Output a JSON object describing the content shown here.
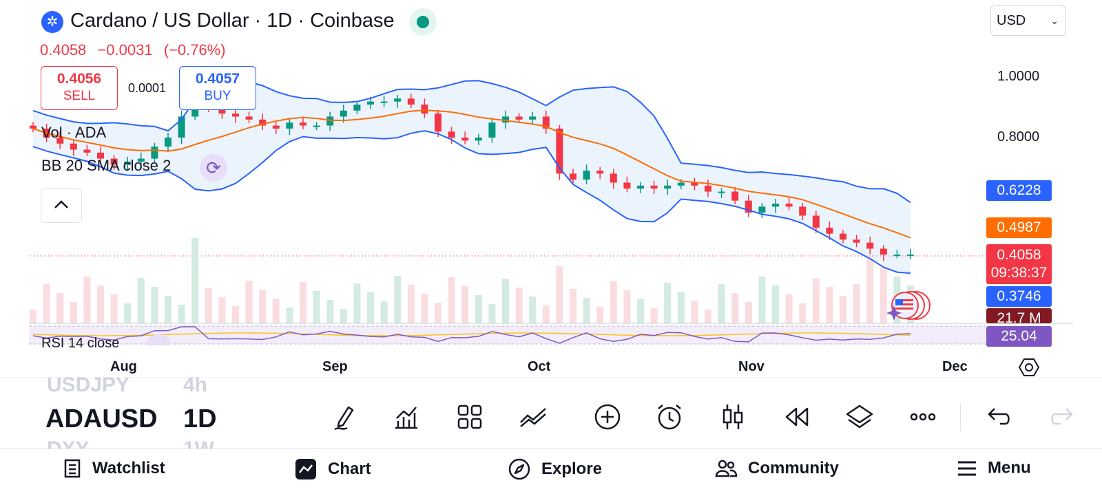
{
  "header": {
    "coin_icon": "cardano-logo-icon",
    "title": "Cardano / US Dollar · 1D · Coinbase",
    "currency": "USD",
    "price": "0.4058",
    "change": "−0.0031",
    "change_pct": "(−0.76%)"
  },
  "order": {
    "sell_price": "0.4056",
    "sell_label": "SELL",
    "spread": "0.0001",
    "buy_price": "0.4057",
    "buy_label": "BUY"
  },
  "legends": {
    "volume": "Vol · ADA",
    "bb": "BB 20 SMA close 2",
    "rsi": "RSI 14 close"
  },
  "price_axis": {
    "labels": [
      "1.0000",
      "0.8000"
    ],
    "bb_upper": "0.6228",
    "bb_basis": "0.4987",
    "last_price": "0.4058",
    "countdown": "09:38:37",
    "bb_lower": "0.3746",
    "volume": "21.7 M",
    "rsi": "25.04"
  },
  "time_axis": [
    "Aug",
    "Sep",
    "Oct",
    "Nov",
    "Dec"
  ],
  "colors": {
    "up": "#089981",
    "down": "#f23645",
    "bb_band": "#2962ff",
    "bb_basis": "#ff6d00",
    "rsi": "#7e57c2"
  },
  "symbol_wheel": {
    "prev_symbol": "USDJPY",
    "prev_interval": "4h",
    "symbol": "ADAUSD",
    "interval": "1D",
    "next_symbol": "DXY",
    "next_interval": "1W"
  },
  "toolbar": [
    "draw-icon",
    "indicators-icon",
    "layouts-icon",
    "trendline-icon",
    "add-icon",
    "alert-icon",
    "candles-icon",
    "replay-icon",
    "layers-icon",
    "more-icon",
    "undo-icon",
    "redo-icon"
  ],
  "nav": {
    "watchlist": "Watchlist",
    "chart": "Chart",
    "explore": "Explore",
    "community": "Community",
    "menu": "Menu"
  },
  "chart_data": {
    "type": "candlestick",
    "title": "Cardano / US Dollar · 1D · Coinbase",
    "x_ticks": [
      "Aug",
      "Sep",
      "Oct",
      "Nov",
      "Dec"
    ],
    "y_ticks": [
      "0.8000",
      "1.0000"
    ],
    "series": [
      {
        "name": "ADAUSD close (approx)",
        "values": [
          0.83,
          0.8,
          0.78,
          0.76,
          0.75,
          0.73,
          0.71,
          0.72,
          0.73,
          0.77,
          0.8,
          0.87,
          0.93,
          0.9,
          0.88,
          0.87,
          0.86,
          0.84,
          0.83,
          0.85,
          0.84,
          0.84,
          0.87,
          0.89,
          0.91,
          0.92,
          0.92,
          0.93,
          0.91,
          0.88,
          0.82,
          0.8,
          0.79,
          0.8,
          0.85,
          0.87,
          0.86,
          0.87,
          0.83,
          0.68,
          0.66,
          0.69,
          0.68,
          0.65,
          0.63,
          0.64,
          0.63,
          0.64,
          0.65,
          0.64,
          0.62,
          0.62,
          0.59,
          0.55,
          0.57,
          0.58,
          0.57,
          0.54,
          0.5,
          0.48,
          0.46,
          0.45,
          0.43,
          0.41,
          0.41,
          0.41
        ]
      },
      {
        "name": "BB upper (last)",
        "values": [
          0.6228
        ]
      },
      {
        "name": "BB basis (last)",
        "values": [
          0.4987
        ]
      },
      {
        "name": "BB lower (last)",
        "values": [
          0.3746
        ]
      },
      {
        "name": "RSI 14 (last)",
        "values": [
          25.04
        ]
      }
    ]
  }
}
